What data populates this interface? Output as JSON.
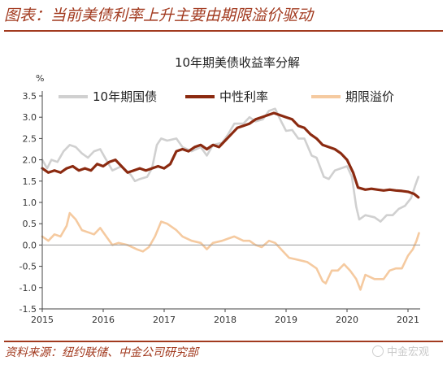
{
  "figure_title": "图表：当前美债利率上升主要由期限溢价驱动",
  "source": "资料来源：纽约联储、中金公司研究部",
  "watermark": "中金宏观",
  "chart_data": {
    "type": "line",
    "title": "10年期美债收益率分解",
    "ylabel": "%",
    "ylim": [
      -1.5,
      3.5
    ],
    "yticks": [
      -1.5,
      -1.0,
      -0.5,
      0.0,
      0.5,
      1.0,
      1.5,
      2.0,
      2.5,
      3.0,
      3.5
    ],
    "ytick_labels": [
      "-1.5",
      "-1.0",
      "-0.5",
      "0.0",
      "0.5",
      "1.0",
      "1.5",
      "2.0",
      "2.5",
      "3.0",
      "3.5"
    ],
    "xlim": [
      2015.0,
      2021.2
    ],
    "xticks": [
      2015,
      2016,
      2017,
      2018,
      2019,
      2020,
      2021
    ],
    "xtick_labels": [
      "2015",
      "2016",
      "2017",
      "2018",
      "2019",
      "2020",
      "2021"
    ],
    "legend_position": "top",
    "grid": false,
    "series": [
      {
        "name": "10年期国债",
        "color": "#d0d0d0",
        "points": [
          [
            2015.0,
            2.0
          ],
          [
            2015.08,
            1.8
          ],
          [
            2015.15,
            2.0
          ],
          [
            2015.25,
            1.95
          ],
          [
            2015.35,
            2.2
          ],
          [
            2015.45,
            2.35
          ],
          [
            2015.55,
            2.3
          ],
          [
            2015.65,
            2.15
          ],
          [
            2015.75,
            2.05
          ],
          [
            2015.85,
            2.2
          ],
          [
            2015.95,
            2.25
          ],
          [
            2016.05,
            2.0
          ],
          [
            2016.15,
            1.75
          ],
          [
            2016.3,
            1.85
          ],
          [
            2016.45,
            1.65
          ],
          [
            2016.52,
            1.5
          ],
          [
            2016.6,
            1.55
          ],
          [
            2016.72,
            1.6
          ],
          [
            2016.8,
            1.8
          ],
          [
            2016.88,
            2.35
          ],
          [
            2016.95,
            2.5
          ],
          [
            2017.05,
            2.45
          ],
          [
            2017.2,
            2.5
          ],
          [
            2017.3,
            2.3
          ],
          [
            2017.45,
            2.2
          ],
          [
            2017.6,
            2.3
          ],
          [
            2017.7,
            2.1
          ],
          [
            2017.8,
            2.35
          ],
          [
            2017.95,
            2.4
          ],
          [
            2018.05,
            2.6
          ],
          [
            2018.15,
            2.85
          ],
          [
            2018.3,
            2.85
          ],
          [
            2018.4,
            3.0
          ],
          [
            2018.5,
            2.9
          ],
          [
            2018.62,
            2.95
          ],
          [
            2018.72,
            3.15
          ],
          [
            2018.82,
            3.2
          ],
          [
            2018.92,
            2.9
          ],
          [
            2019.0,
            2.68
          ],
          [
            2019.1,
            2.7
          ],
          [
            2019.2,
            2.5
          ],
          [
            2019.3,
            2.5
          ],
          [
            2019.42,
            2.1
          ],
          [
            2019.5,
            2.05
          ],
          [
            2019.62,
            1.6
          ],
          [
            2019.7,
            1.55
          ],
          [
            2019.8,
            1.75
          ],
          [
            2019.9,
            1.8
          ],
          [
            2020.0,
            1.85
          ],
          [
            2020.08,
            1.6
          ],
          [
            2020.15,
            0.9
          ],
          [
            2020.2,
            0.6
          ],
          [
            2020.3,
            0.7
          ],
          [
            2020.45,
            0.65
          ],
          [
            2020.55,
            0.55
          ],
          [
            2020.65,
            0.7
          ],
          [
            2020.75,
            0.7
          ],
          [
            2020.85,
            0.85
          ],
          [
            2020.95,
            0.92
          ],
          [
            2021.05,
            1.1
          ],
          [
            2021.12,
            1.4
          ],
          [
            2021.17,
            1.6
          ]
        ]
      },
      {
        "name": "中性利率",
        "color": "#8b2a10",
        "points": [
          [
            2015.0,
            1.8
          ],
          [
            2015.1,
            1.7
          ],
          [
            2015.2,
            1.75
          ],
          [
            2015.3,
            1.7
          ],
          [
            2015.4,
            1.8
          ],
          [
            2015.5,
            1.85
          ],
          [
            2015.6,
            1.75
          ],
          [
            2015.7,
            1.8
          ],
          [
            2015.8,
            1.75
          ],
          [
            2015.9,
            1.9
          ],
          [
            2016.0,
            1.85
          ],
          [
            2016.1,
            1.95
          ],
          [
            2016.2,
            2.0
          ],
          [
            2016.3,
            1.85
          ],
          [
            2016.4,
            1.7
          ],
          [
            2016.5,
            1.75
          ],
          [
            2016.6,
            1.8
          ],
          [
            2016.7,
            1.75
          ],
          [
            2016.8,
            1.8
          ],
          [
            2016.9,
            1.85
          ],
          [
            2017.0,
            1.8
          ],
          [
            2017.1,
            1.9
          ],
          [
            2017.2,
            2.2
          ],
          [
            2017.3,
            2.25
          ],
          [
            2017.4,
            2.2
          ],
          [
            2017.5,
            2.3
          ],
          [
            2017.6,
            2.35
          ],
          [
            2017.7,
            2.25
          ],
          [
            2017.8,
            2.35
          ],
          [
            2017.9,
            2.3
          ],
          [
            2018.0,
            2.45
          ],
          [
            2018.1,
            2.6
          ],
          [
            2018.2,
            2.75
          ],
          [
            2018.3,
            2.8
          ],
          [
            2018.4,
            2.85
          ],
          [
            2018.5,
            2.95
          ],
          [
            2018.6,
            3.0
          ],
          [
            2018.7,
            3.05
          ],
          [
            2018.8,
            3.1
          ],
          [
            2018.9,
            3.05
          ],
          [
            2019.0,
            3.0
          ],
          [
            2019.1,
            2.95
          ],
          [
            2019.2,
            2.8
          ],
          [
            2019.3,
            2.75
          ],
          [
            2019.4,
            2.6
          ],
          [
            2019.5,
            2.5
          ],
          [
            2019.6,
            2.35
          ],
          [
            2019.7,
            2.3
          ],
          [
            2019.8,
            2.25
          ],
          [
            2019.9,
            2.15
          ],
          [
            2020.0,
            2.0
          ],
          [
            2020.1,
            1.7
          ],
          [
            2020.18,
            1.35
          ],
          [
            2020.3,
            1.3
          ],
          [
            2020.4,
            1.32
          ],
          [
            2020.5,
            1.3
          ],
          [
            2020.6,
            1.28
          ],
          [
            2020.7,
            1.3
          ],
          [
            2020.8,
            1.28
          ],
          [
            2020.9,
            1.27
          ],
          [
            2021.0,
            1.25
          ],
          [
            2021.1,
            1.2
          ],
          [
            2021.17,
            1.12
          ]
        ]
      },
      {
        "name": "期限溢价",
        "color": "#f5caa0",
        "points": [
          [
            2015.0,
            0.2
          ],
          [
            2015.1,
            0.1
          ],
          [
            2015.2,
            0.25
          ],
          [
            2015.3,
            0.2
          ],
          [
            2015.4,
            0.45
          ],
          [
            2015.45,
            0.75
          ],
          [
            2015.55,
            0.6
          ],
          [
            2015.65,
            0.35
          ],
          [
            2015.75,
            0.3
          ],
          [
            2015.85,
            0.25
          ],
          [
            2015.95,
            0.4
          ],
          [
            2016.05,
            0.2
          ],
          [
            2016.15,
            0.0
          ],
          [
            2016.25,
            0.05
          ],
          [
            2016.4,
            0.0
          ],
          [
            2016.55,
            -0.1
          ],
          [
            2016.65,
            -0.15
          ],
          [
            2016.75,
            -0.05
          ],
          [
            2016.85,
            0.2
          ],
          [
            2016.95,
            0.55
          ],
          [
            2017.05,
            0.5
          ],
          [
            2017.2,
            0.35
          ],
          [
            2017.3,
            0.2
          ],
          [
            2017.45,
            0.1
          ],
          [
            2017.6,
            0.05
          ],
          [
            2017.7,
            -0.1
          ],
          [
            2017.8,
            0.05
          ],
          [
            2017.95,
            0.1
          ],
          [
            2018.05,
            0.15
          ],
          [
            2018.15,
            0.2
          ],
          [
            2018.3,
            0.1
          ],
          [
            2018.4,
            0.1
          ],
          [
            2018.5,
            0.0
          ],
          [
            2018.6,
            -0.05
          ],
          [
            2018.72,
            0.1
          ],
          [
            2018.82,
            0.05
          ],
          [
            2018.95,
            -0.15
          ],
          [
            2019.05,
            -0.3
          ],
          [
            2019.2,
            -0.35
          ],
          [
            2019.35,
            -0.4
          ],
          [
            2019.5,
            -0.55
          ],
          [
            2019.6,
            -0.85
          ],
          [
            2019.65,
            -0.9
          ],
          [
            2019.75,
            -0.6
          ],
          [
            2019.85,
            -0.6
          ],
          [
            2019.95,
            -0.45
          ],
          [
            2020.05,
            -0.6
          ],
          [
            2020.15,
            -0.8
          ],
          [
            2020.22,
            -1.05
          ],
          [
            2020.3,
            -0.7
          ],
          [
            2020.45,
            -0.8
          ],
          [
            2020.6,
            -0.8
          ],
          [
            2020.7,
            -0.6
          ],
          [
            2020.8,
            -0.55
          ],
          [
            2020.9,
            -0.55
          ],
          [
            2021.0,
            -0.25
          ],
          [
            2021.08,
            -0.1
          ],
          [
            2021.14,
            0.1
          ],
          [
            2021.18,
            0.28
          ]
        ]
      }
    ]
  }
}
